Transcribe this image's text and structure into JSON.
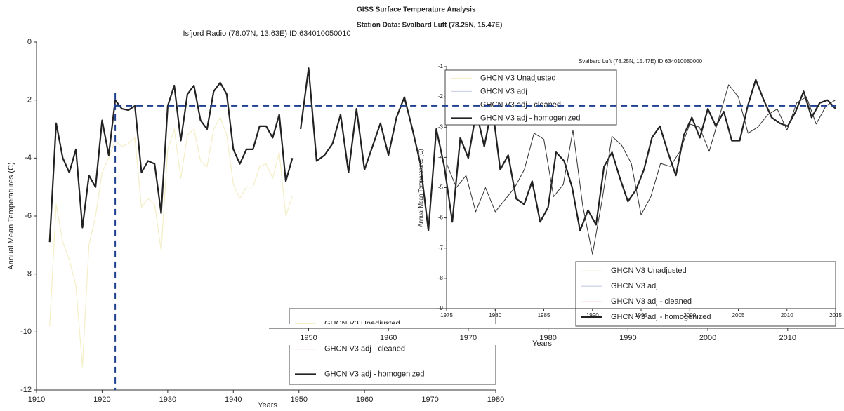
{
  "chart_data": [
    {
      "type": "line",
      "title": "Isfjord Radio (78.07N, 13.63E) ID:634010050010",
      "y_label": "Annual Mean Temperatures (C)",
      "x_label": "Years",
      "xlim": [
        1910,
        1980
      ],
      "xticks": [
        1910,
        1920,
        1930,
        1940,
        1950,
        1960,
        1970,
        1980
      ],
      "ylim": [
        -12,
        0
      ],
      "yticks": [
        0,
        -2,
        -4,
        -6,
        -8,
        -10,
        -12
      ],
      "hline": -2.2,
      "vline": 1922,
      "x": [
        1912,
        1913,
        1914,
        1915,
        1916,
        1917,
        1918,
        1919,
        1920,
        1921,
        1922,
        1923,
        1924,
        1925,
        1926,
        1927,
        1928,
        1929,
        1930,
        1931,
        1932,
        1933,
        1934,
        1935,
        1936,
        1937,
        1938,
        1939,
        1940,
        1941,
        1942,
        1943,
        1944,
        1945,
        1946,
        1947,
        1948,
        1949
      ],
      "series": [
        {
          "color": "#f3eec6",
          "width": 1.2,
          "values": [
            -9.8,
            -5.6,
            -6.9,
            -7.5,
            -8.4,
            -11.2,
            -7.0,
            -6.0,
            -4.5,
            -4.0,
            -3.4,
            -3.6,
            -3.5,
            -3.3,
            -5.7,
            -5.4,
            -5.6,
            -7.2,
            -3.7,
            -3.0,
            -4.7,
            -3.2,
            -3.0,
            -4.1,
            -4.3,
            -3.0,
            -2.6,
            -3.2,
            -4.9,
            -5.4,
            -5.0,
            -5.0,
            -4.3,
            -4.2,
            -4.7,
            -3.8,
            -6.0,
            -5.3
          ]
        },
        {
          "color": "#222222",
          "width": 2.2,
          "values": [
            -6.9,
            -2.8,
            -4.0,
            -4.5,
            -3.7,
            -6.4,
            -4.6,
            -5.0,
            -2.7,
            -3.9,
            -2.0,
            -2.3,
            -2.35,
            -2.2,
            -4.5,
            -4.1,
            -4.2,
            -5.9,
            -2.2,
            -1.5,
            -3.4,
            -1.8,
            -1.5,
            -2.7,
            -3.0,
            -1.7,
            -1.4,
            -1.8,
            -3.7,
            -4.2,
            -3.7,
            -3.7,
            -2.9,
            -2.9,
            -3.3,
            -2.5,
            -4.8,
            -4.0
          ]
        }
      ],
      "legend": [
        {
          "name": "GHCN V3 Unadjusted",
          "color": "#f3eec6",
          "width": 1.2
        },
        {
          "name": "GHCN V3 adj - cleaned",
          "color": "#f6d0d0",
          "width": 1.2
        },
        {
          "name": "GHCN V3 adj - homogenized",
          "color": "#222222",
          "width": 2.5
        }
      ]
    },
    {
      "type": "line",
      "title": "GISS Surface Temperature Analysis",
      "subtitle": "Station Data: Svalbard Luft (78.25N, 15.47E)",
      "x_label": "Years",
      "xlim": [
        1946,
        2016
      ],
      "xticks": [
        1950,
        1960,
        1970,
        1980,
        1990,
        2000,
        2010
      ],
      "ylim": [
        -12,
        0
      ],
      "x": [
        1949,
        1950,
        1951,
        1952,
        1953,
        1954,
        1955,
        1956,
        1957,
        1958,
        1959,
        1960,
        1961,
        1962,
        1963,
        1964,
        1965,
        1966,
        1967,
        1968,
        1969,
        1970,
        1971,
        1972,
        1973,
        1974,
        1975,
        1976,
        1977,
        1978,
        1979,
        1980,
        1981,
        1982,
        1983,
        1984,
        1985,
        1986,
        1987,
        1988,
        1989,
        1990,
        1991,
        1992,
        1993,
        1994,
        1995,
        1996,
        1997,
        1998,
        1999,
        2000,
        2001,
        2002,
        2003,
        2004,
        2005,
        2006,
        2007,
        2008,
        2009,
        2010,
        2011,
        2012,
        2013,
        2014,
        2015,
        2016
      ],
      "series": [
        {
          "color": "#222222",
          "width": 2.2,
          "values": [
            -3.0,
            -0.9,
            -4.1,
            -3.9,
            -3.5,
            -2.5,
            -4.5,
            -2.3,
            -4.4,
            -3.6,
            -2.8,
            -3.9,
            -2.6,
            -1.9,
            -3.0,
            -4.2,
            -6.5,
            -3.0,
            -4.3,
            -6.2,
            -3.3,
            -4.0,
            -2.4,
            -3.6,
            -2.2,
            -4.4,
            -3.9,
            -5.4,
            -5.6,
            -4.8,
            -6.2,
            -5.7,
            -3.8,
            -4.1,
            -5.0,
            -6.5,
            -5.8,
            -6.3,
            -4.3,
            -3.8,
            -4.7,
            -5.5,
            -5.1,
            -4.4,
            -3.3,
            -2.9,
            -3.8,
            -4.6,
            -3.2,
            -2.6,
            -3.3,
            -2.3,
            -2.9,
            -2.4,
            -3.4,
            -3.4,
            -2.2,
            -1.3,
            -2.0,
            -2.6,
            -2.8,
            -2.9,
            -2.4,
            -1.7,
            -2.6,
            -2.1,
            -2.0,
            -2.3
          ]
        }
      ],
      "legend": [
        {
          "name": "GHCN V3 Unadjusted",
          "color": "#f3eec6",
          "width": 1.2
        },
        {
          "name": "GHCN V3 adj",
          "color": "#c8cce8",
          "width": 1.2
        },
        {
          "name": "GHCN V3 adj - cleaned",
          "color": "#f6d0d0",
          "width": 1.2
        },
        {
          "name": "GHCN V3 adj - homogenized",
          "color": "#222222",
          "width": 2.5
        }
      ]
    },
    {
      "type": "line",
      "title": "Svalbard Luft (78.25N, 15.47E) ID:634010080000",
      "y_label": "Annual Mean Temperatures (C)",
      "xlim": [
        1975,
        2015
      ],
      "xticks": [
        1975,
        1980,
        1985,
        1990,
        1995,
        2000,
        2005,
        2010,
        2015
      ],
      "ylim": [
        -9,
        -1
      ],
      "yticks": [
        -1,
        -2,
        -3,
        -4,
        -5,
        -6,
        -7,
        -8,
        -9
      ],
      "x": [
        1975,
        1976,
        1977,
        1978,
        1979,
        1980,
        1981,
        1982,
        1983,
        1984,
        1985,
        1986,
        1987,
        1988,
        1989,
        1990,
        1991,
        1992,
        1993,
        1994,
        1995,
        1996,
        1997,
        1998,
        1999,
        2000,
        2001,
        2002,
        2003,
        2004,
        2005,
        2006,
        2007,
        2008,
        2009,
        2010,
        2011,
        2012,
        2013,
        2014,
        2015
      ],
      "series": [
        {
          "color": "#333333",
          "width": 1,
          "values": [
            -4.2,
            -5.0,
            -4.6,
            -5.8,
            -5.0,
            -5.8,
            -5.4,
            -5.0,
            -4.4,
            -3.2,
            -3.4,
            -5.3,
            -4.9,
            -3.1,
            -5.6,
            -7.2,
            -5.4,
            -3.3,
            -3.6,
            -4.2,
            -5.9,
            -5.3,
            -4.2,
            -4.3,
            -3.8,
            -2.9,
            -3.0,
            -3.8,
            -2.7,
            -1.6,
            -2.0,
            -3.2,
            -3.0,
            -2.6,
            -2.4,
            -3.1,
            -2.2,
            -2.0,
            -2.9,
            -2.3,
            -2.1
          ]
        }
      ],
      "legend": [
        {
          "name": "GHCN V3 Unadjusted",
          "color": "#f3eec6",
          "width": 1
        },
        {
          "name": "GHCN V3 adj",
          "color": "#c8cce8",
          "width": 1
        },
        {
          "name": "GHCN V3 adj - cleaned",
          "color": "#f6d0d0",
          "width": 1
        },
        {
          "name": "GHCN V3 adj - homogenized",
          "color": "#222222",
          "width": 2
        }
      ]
    }
  ]
}
